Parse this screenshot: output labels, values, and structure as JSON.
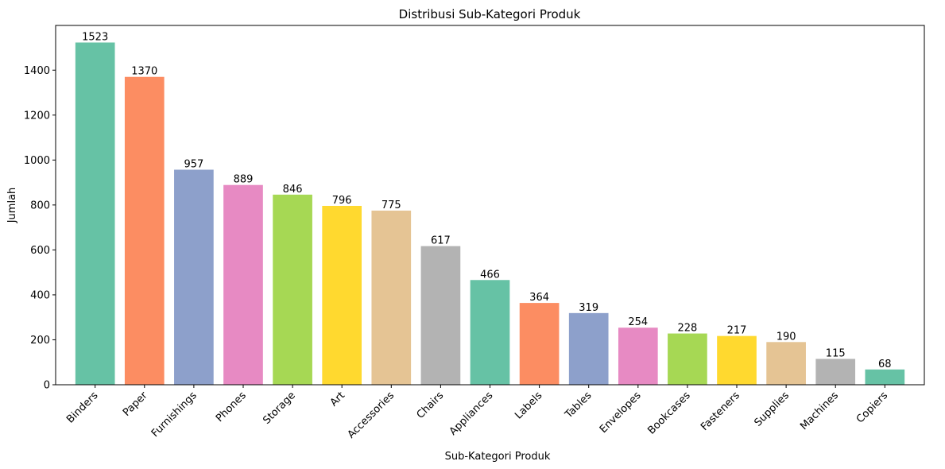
{
  "chart_data": {
    "type": "bar",
    "title": "Distribusi Sub-Kategori Produk",
    "xlabel": "Sub-Kategori Produk",
    "ylabel": "Jumlah",
    "ylim": [
      0,
      1599
    ],
    "yticks": [
      0,
      200,
      400,
      600,
      800,
      1000,
      1200,
      1400
    ],
    "categories": [
      "Binders",
      "Paper",
      "Furnishings",
      "Phones",
      "Storage",
      "Art",
      "Accessories",
      "Chairs",
      "Appliances",
      "Labels",
      "Tables",
      "Envelopes",
      "Bookcases",
      "Fasteners",
      "Supplies",
      "Machines",
      "Copiers"
    ],
    "values": [
      1523,
      1370,
      957,
      889,
      846,
      796,
      775,
      617,
      466,
      364,
      319,
      254,
      228,
      217,
      190,
      115,
      68
    ],
    "colors": [
      "#66c2a5",
      "#fc8d62",
      "#8da0cb",
      "#e78ac3",
      "#a6d854",
      "#ffd92f",
      "#e5c494",
      "#b3b3b3",
      "#66c2a5",
      "#fc8d62",
      "#8da0cb",
      "#e78ac3",
      "#a6d854",
      "#ffd92f",
      "#e5c494",
      "#b3b3b3",
      "#66c2a5"
    ],
    "grid": false,
    "legend": "none"
  }
}
